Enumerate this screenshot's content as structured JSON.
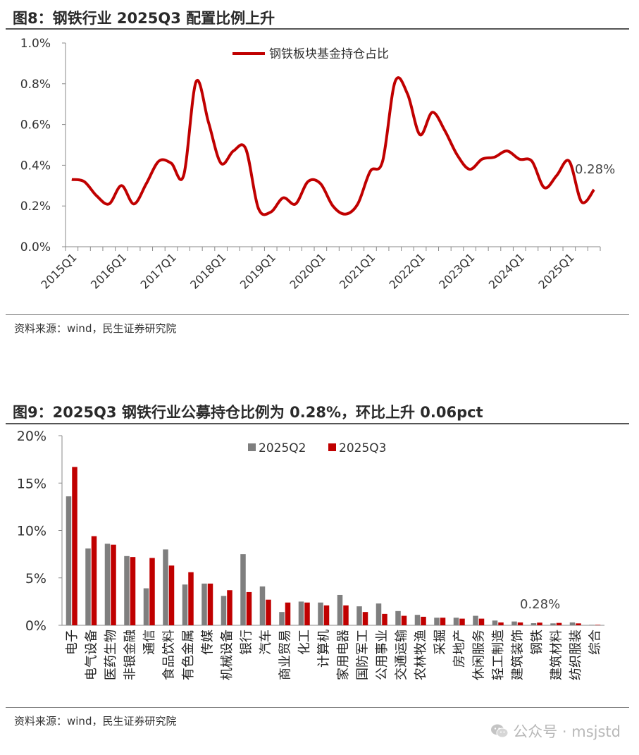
{
  "figure1": {
    "title": "图8：钢铁行业 2025Q3 配置比例上升",
    "source": "资料来源：wind，民生证券研究院"
  },
  "figure2": {
    "title": "图9：2025Q3 钢铁行业公募持仓比例为 0.28%，环比上升 0.06pct",
    "source": "资料来源：wind，民生证券研究院"
  },
  "watermark": {
    "text": "公众号 · msjstd",
    "icon": "wechat-icon"
  },
  "colors": {
    "line": "#c00000",
    "q2": "#7f7f7f",
    "q3": "#c00000",
    "axis": "#888888"
  },
  "chart_data": [
    {
      "type": "line",
      "title": "",
      "xlabel": "",
      "ylabel": "",
      "legend": "钢铁板块基金持仓占比",
      "legend_position": "top-center",
      "ylim": [
        0,
        0.01
      ],
      "yticks": [
        "0.0%",
        "0.2%",
        "0.4%",
        "0.6%",
        "0.8%",
        "1.0%"
      ],
      "xticks": [
        "2015Q1",
        "2016Q1",
        "2017Q1",
        "2018Q1",
        "2019Q1",
        "2020Q1",
        "2021Q1",
        "2022Q1",
        "2023Q1",
        "2024Q1",
        "2025Q1"
      ],
      "x": [
        "2015Q1",
        "2015Q2",
        "2015Q3",
        "2015Q4",
        "2016Q1",
        "2016Q2",
        "2016Q3",
        "2016Q4",
        "2017Q1",
        "2017Q2",
        "2017Q3",
        "2017Q4",
        "2018Q1",
        "2018Q2",
        "2018Q3",
        "2018Q4",
        "2019Q1",
        "2019Q2",
        "2019Q3",
        "2019Q4",
        "2020Q1",
        "2020Q2",
        "2020Q3",
        "2020Q4",
        "2021Q1",
        "2021Q2",
        "2021Q3",
        "2021Q4",
        "2022Q1",
        "2022Q2",
        "2022Q3",
        "2022Q4",
        "2023Q1",
        "2023Q2",
        "2023Q3",
        "2023Q4",
        "2024Q1",
        "2024Q2",
        "2024Q3",
        "2024Q4",
        "2025Q1",
        "2025Q2",
        "2025Q3"
      ],
      "values": [
        0.0033,
        0.0032,
        0.0025,
        0.0021,
        0.003,
        0.0021,
        0.0031,
        0.0042,
        0.0041,
        0.0035,
        0.0081,
        0.0061,
        0.0041,
        0.0047,
        0.0048,
        0.0019,
        0.0017,
        0.0024,
        0.0021,
        0.0032,
        0.0031,
        0.002,
        0.0016,
        0.0021,
        0.0037,
        0.0042,
        0.0081,
        0.0075,
        0.0055,
        0.0066,
        0.0057,
        0.0045,
        0.0038,
        0.0043,
        0.0044,
        0.0047,
        0.0043,
        0.0042,
        0.0029,
        0.0035,
        0.0042,
        0.0022,
        0.0028
      ],
      "annotation": "0.28%"
    },
    {
      "type": "bar",
      "title": "",
      "xlabel": "",
      "ylabel": "",
      "ylim": [
        0,
        20
      ],
      "yticks": [
        "0%",
        "5%",
        "10%",
        "15%",
        "20%"
      ],
      "legend_position": "top-center",
      "categories": [
        "电子",
        "电气设备",
        "医药生物",
        "非银金融",
        "通信",
        "食品饮料",
        "有色金属",
        "传媒",
        "机械设备",
        "银行",
        "汽车",
        "商业贸易",
        "化工",
        "计算机",
        "家用电器",
        "国防军工",
        "公用事业",
        "交通运输",
        "农林牧渔",
        "采掘",
        "房地产",
        "休闲服务",
        "轻工制造",
        "建筑装饰",
        "钢铁",
        "建筑材料",
        "纺织服装",
        "综合"
      ],
      "series": [
        {
          "name": "2025Q2",
          "values": [
            13.6,
            8.1,
            8.6,
            7.3,
            3.9,
            8.0,
            4.3,
            4.4,
            3.1,
            7.5,
            4.1,
            1.4,
            2.5,
            2.4,
            3.2,
            2.0,
            2.3,
            1.5,
            1.1,
            0.8,
            0.8,
            1.0,
            0.5,
            0.4,
            0.22,
            0.2,
            0.3,
            0.05
          ]
        },
        {
          "name": "2025Q3",
          "values": [
            16.7,
            9.4,
            8.5,
            7.2,
            7.1,
            6.3,
            5.6,
            4.4,
            3.7,
            3.5,
            2.7,
            2.4,
            2.4,
            2.1,
            2.1,
            1.4,
            1.2,
            1.0,
            0.9,
            0.8,
            0.7,
            0.7,
            0.3,
            0.3,
            0.28,
            0.25,
            0.2,
            0.05
          ]
        }
      ],
      "annotation": "0.28%"
    }
  ]
}
